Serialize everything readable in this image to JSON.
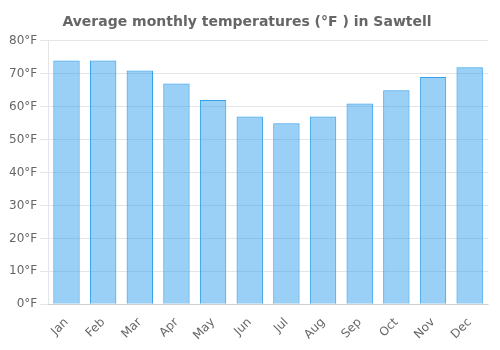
{
  "chart_data": {
    "type": "bar",
    "title": "Average monthly temperatures (°F ) in Sawtell",
    "categories": [
      "Jan",
      "Feb",
      "Mar",
      "Apr",
      "May",
      "Jun",
      "Jul",
      "Aug",
      "Sep",
      "Oct",
      "Nov",
      "Dec"
    ],
    "values": [
      74,
      74,
      71,
      67,
      62,
      57,
      55,
      57,
      61,
      65,
      69,
      72
    ],
    "ylim": [
      0,
      80
    ],
    "yticks": [
      {
        "value": 0,
        "label": "0°F"
      },
      {
        "value": 10,
        "label": "10°F"
      },
      {
        "value": 20,
        "label": "20°F"
      },
      {
        "value": 30,
        "label": "30°F"
      },
      {
        "value": 40,
        "label": "40°F"
      },
      {
        "value": 50,
        "label": "50°F"
      },
      {
        "value": 60,
        "label": "60°F"
      },
      {
        "value": 70,
        "label": "70°F"
      },
      {
        "value": 80,
        "label": "80°F"
      }
    ],
    "grid": true
  }
}
